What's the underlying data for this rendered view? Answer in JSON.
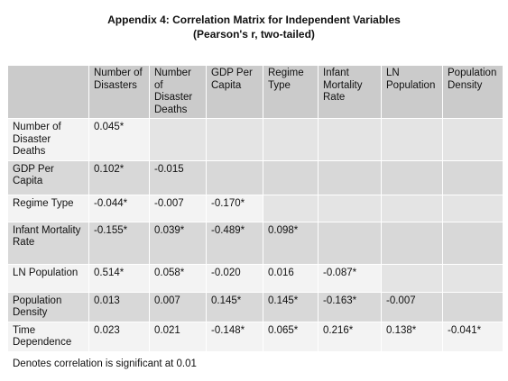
{
  "title": "Appendix 4: Correlation Matrix for Independent Variables",
  "subtitle": "(Pearson's r, two-tailed)",
  "table": {
    "columns": [
      "Number of Disasters",
      "Number of Disaster Deaths",
      "GDP Per Capita",
      "Regime Type",
      "Infant Mortality Rate",
      "LN Population",
      "Population Density"
    ],
    "rows": [
      {
        "label": "Number of Disaster Deaths",
        "values": [
          "0.045*"
        ]
      },
      {
        "label": "GDP Per Capita",
        "values": [
          "0.102*",
          "-0.015"
        ]
      },
      {
        "label": "Regime Type",
        "values": [
          "-0.044*",
          "-0.007",
          "-0.170*"
        ]
      },
      {
        "label": "Infant Mortality Rate",
        "values": [
          "-0.155*",
          "0.039*",
          "-0.489*",
          "0.098*"
        ]
      },
      {
        "label": "LN Population",
        "values": [
          "0.514*",
          "0.058*",
          "-0.020",
          "0.016",
          "-0.087*"
        ]
      },
      {
        "label": "Population Density",
        "values": [
          "0.013",
          "0.007",
          "0.145*",
          "0.145*",
          "-0.163*",
          "-0.007"
        ]
      },
      {
        "label": "Time Dependence",
        "values": [
          "0.023",
          "0.021",
          "-0.148*",
          "0.065*",
          "0.216*",
          "0.138*",
          "-0.041*"
        ]
      }
    ]
  },
  "footnote": "Denotes correlation is significant at 0.01"
}
